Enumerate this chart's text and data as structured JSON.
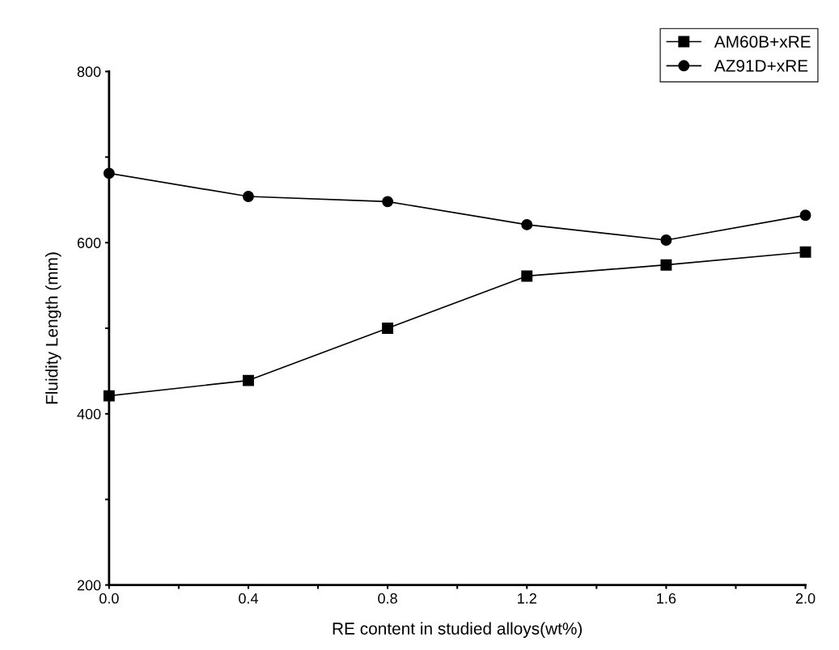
{
  "chart_data": {
    "type": "line",
    "xlabel": "RE content in studied alloys(wt%)",
    "ylabel": "Fluidity Length (mm)",
    "x": [
      0.0,
      0.4,
      0.8,
      1.2,
      1.6,
      2.0
    ],
    "series": [
      {
        "name": "AM60B+xRE",
        "color": "#000000",
        "marker": "square",
        "values": [
          421,
          439,
          500,
          561,
          574,
          589
        ]
      },
      {
        "name": "AZ91D+xRE",
        "color": "#000000",
        "marker": "circle",
        "values": [
          681,
          654,
          648,
          621,
          603,
          632
        ]
      }
    ],
    "xlim": [
      0.0,
      2.0
    ],
    "ylim": [
      200,
      800
    ],
    "xticks": [
      {
        "value": 0.0,
        "label": "0.0"
      },
      {
        "value": 0.2,
        "label": null
      },
      {
        "value": 0.4,
        "label": "0.4"
      },
      {
        "value": 0.6,
        "label": null
      },
      {
        "value": 0.8,
        "label": "0.8"
      },
      {
        "value": 1.0,
        "label": null
      },
      {
        "value": 1.2,
        "label": "1.2"
      },
      {
        "value": 1.4,
        "label": null
      },
      {
        "value": 1.6,
        "label": "1.6"
      },
      {
        "value": 1.8,
        "label": null
      },
      {
        "value": 2.0,
        "label": "2.0"
      }
    ],
    "yticks": [
      200,
      {
        "value": 300,
        "label": null
      },
      400,
      {
        "value": 500,
        "label": null
      },
      600,
      {
        "value": 700,
        "label": null
      },
      800
    ],
    "grid": false,
    "legend": "top right",
    "line_style": "solid"
  }
}
